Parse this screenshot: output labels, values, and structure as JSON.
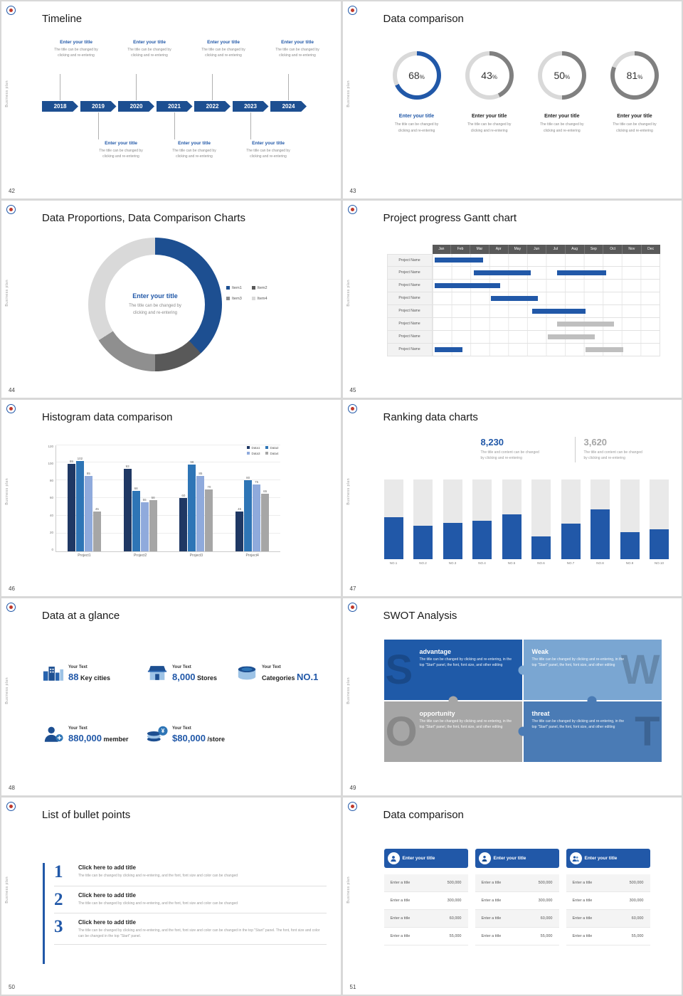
{
  "common": {
    "vertical_text": "Business plan"
  },
  "colors": {
    "accent": "#2158a8",
    "accent_dark": "#1d4f91",
    "ring_gray": "#808080",
    "track": "#d9d9d9",
    "bar_gray": "#bfbfbf"
  },
  "slides": {
    "timeline": {
      "page": "42",
      "title": "Timeline",
      "years": [
        "2018",
        "2019",
        "2020",
        "2021",
        "2022",
        "2023",
        "2024"
      ],
      "entries_top": [
        {
          "title": "Enter your title",
          "line1": "The title can be changed by",
          "line2": "clicking and re-entering"
        },
        {
          "title": "Enter your title",
          "line1": "The title can be changed by",
          "line2": "clicking and re-entering"
        },
        {
          "title": "Enter your title",
          "line1": "The title can be changed by",
          "line2": "clicking and re-entering"
        },
        {
          "title": "Enter your title",
          "line1": "The title can be changed by",
          "line2": "clicking and re-entering"
        }
      ],
      "entries_bottom": [
        {
          "title": "Enter your title",
          "line1": "The title can be changed by",
          "line2": "clicking and re-entering"
        },
        {
          "title": "Enter your title",
          "line1": "The title can be changed by",
          "line2": "clicking and re-entering"
        },
        {
          "title": "Enter your title",
          "line1": "The title can be changed by",
          "line2": "clicking and re-entering"
        }
      ]
    },
    "rings": {
      "page": "43",
      "title": "Data comparison",
      "items": [
        {
          "percent": 68,
          "accent": true,
          "title": "Enter your title",
          "line1": "The title can be changed by",
          "line2": "clicking and re-entering"
        },
        {
          "percent": 43,
          "accent": false,
          "title": "Enter your title",
          "line1": "The title can be changed by",
          "line2": "clicking and re-entering"
        },
        {
          "percent": 50,
          "accent": false,
          "title": "Enter your title",
          "line1": "The title can be changed by",
          "line2": "clicking and re-entering"
        },
        {
          "percent": 81,
          "accent": false,
          "title": "Enter your title",
          "line1": "The title can be changed by",
          "line2": "clicking and re-entering"
        }
      ]
    },
    "donut": {
      "page": "44",
      "title": "Data Proportions, Data Comparison Charts",
      "center_title": "Enter your title",
      "center_line1": "The title can be changed by",
      "center_line2": "clicking and re-entering",
      "chart_data": {
        "type": "pie",
        "items": [
          {
            "label": "Item1",
            "value": 38,
            "color": "#1d4f91"
          },
          {
            "label": "Item2",
            "value": 12,
            "color": "#595959"
          },
          {
            "label": "Item3",
            "value": 16,
            "color": "#8f8f8f"
          },
          {
            "label": "Item4",
            "value": 34,
            "color": "#d9d9d9"
          }
        ]
      }
    },
    "gantt": {
      "page": "45",
      "title": "Project progress Gantt chart",
      "row_label": "Project Name",
      "row_count": 8,
      "chart_data": {
        "type": "gantt",
        "months": [
          "Jan",
          "Feb",
          "Mar",
          "Apr",
          "May",
          "Jun",
          "Jul",
          "Aug",
          "Sep",
          "Oct",
          "Nov",
          "Dec"
        ],
        "bars": [
          {
            "row": 0,
            "start": 0.15,
            "end": 2.7,
            "color": "blue"
          },
          {
            "row": 1,
            "start": 2.2,
            "end": 5.2,
            "color": "blue"
          },
          {
            "row": 1,
            "start": 6.6,
            "end": 9.2,
            "color": "blue"
          },
          {
            "row": 2,
            "start": 0.15,
            "end": 3.6,
            "color": "blue"
          },
          {
            "row": 3,
            "start": 3.1,
            "end": 5.6,
            "color": "blue"
          },
          {
            "row": 4,
            "start": 5.3,
            "end": 8.1,
            "color": "blue"
          },
          {
            "row": 5,
            "start": 6.6,
            "end": 9.6,
            "color": "gray"
          },
          {
            "row": 6,
            "start": 6.1,
            "end": 8.6,
            "color": "gray"
          },
          {
            "row": 7,
            "start": 0.15,
            "end": 1.6,
            "color": "blue"
          },
          {
            "row": 7,
            "start": 8.1,
            "end": 10.1,
            "color": "gray"
          }
        ]
      }
    },
    "histogram": {
      "page": "46",
      "title": "Histogram data comparison",
      "chart_data": {
        "type": "bar",
        "categories": [
          "Project1",
          "Project2",
          "Project3",
          "Project4"
        ],
        "series": [
          {
            "name": "Data1",
            "color": "#1f3864",
            "values": [
              99,
              93,
              60,
              45
            ]
          },
          {
            "name": "Data2",
            "color": "#2e75b6",
            "values": [
              102,
              68,
              98,
              80
            ]
          },
          {
            "name": "Data3",
            "color": "#8faadc",
            "values": [
              85,
              55,
              85,
              75
            ]
          },
          {
            "name": "Data4",
            "color": "#a6a6a6",
            "values": [
              45,
              58,
              70,
              65
            ]
          }
        ],
        "ylim": [
          0,
          120
        ],
        "yticks": [
          0,
          20,
          40,
          60,
          80,
          100,
          120
        ]
      }
    },
    "ranking": {
      "page": "47",
      "title": "Ranking data charts",
      "stats": [
        {
          "value": "8,230",
          "color": "#2158a8",
          "line1": "The title and content can be changed",
          "line2": "by clicking and re-entering"
        },
        {
          "value": "3,620",
          "color": "#a6a6a6",
          "line1": "The title and content can be changed",
          "line2": "by clicking and re-entering"
        }
      ],
      "chart_data": {
        "type": "bar",
        "categories": [
          "NO.1",
          "NO.2",
          "NO.3",
          "NO.4",
          "NO.5",
          "NO.6",
          "NO.7",
          "NO.8",
          "NO.9",
          "NO.10"
        ],
        "values": [
          52,
          42,
          45,
          48,
          56,
          28,
          44,
          62,
          34,
          37
        ],
        "ylim": [
          0,
          100
        ]
      }
    },
    "glance": {
      "page": "48",
      "title": "Data at a glance",
      "rows": [
        [
          {
            "icon": "city",
            "label": "Your Text",
            "big": "88",
            "rest": "Key cities"
          },
          {
            "icon": "store",
            "label": "Your Text",
            "big": "8,000",
            "rest": "Stores"
          },
          {
            "icon": "categories",
            "label": "Your Text",
            "pre": "Categories",
            "big": "NO.1"
          }
        ],
        [
          {
            "icon": "member",
            "label": "Your Text",
            "big": "880,000",
            "rest": "member"
          },
          {
            "icon": "coins",
            "label": "Your Text",
            "big": "$80,000",
            "rest": "/store"
          }
        ]
      ]
    },
    "swot": {
      "page": "49",
      "title": "SWOT Analysis",
      "quadrants": [
        {
          "letter": "S",
          "word": "advantage",
          "color": "#1f5aa8",
          "body": "The title can be changed by clicking and re-entering, in the top \"Start\" panel, the font, font size, and other editing"
        },
        {
          "letter": "W",
          "word": "Weak",
          "color": "#7aa6d2",
          "body": "The title can be changed by clicking and re-entering, in the top \"Start\" panel, the font, font size, and other editing"
        },
        {
          "letter": "O",
          "word": "opportunity",
          "color": "#a6a6a6",
          "body": "The title can be changed by clicking and re-entering, in the top \"Start\" panel, the font, font size, and other editing"
        },
        {
          "letter": "T",
          "word": "threat",
          "color": "#4a7bb5",
          "body": "The title can be changed by clicking and re-entering, in the top \"Start\" panel, the font, font size, and other editing"
        }
      ]
    },
    "bullets": {
      "page": "50",
      "title": "List of bullet points",
      "items": [
        {
          "num": "1",
          "title": "Click here to add title",
          "body": "The title can be changed by clicking and re-entering, and the font, font size and color can be changed"
        },
        {
          "num": "2",
          "title": "Click here to add title",
          "body": "The title can be changed by clicking and re-entering, and the font, font size and color can be changed"
        },
        {
          "num": "3",
          "title": "Click here to add title",
          "body": "The title can be changed by clicking and re-entering, and the font, font size and color can be changed in the top \"Start\" panel. The font, font size and color can be changed in the top \"Start\" panel."
        }
      ]
    },
    "cards": {
      "page": "51",
      "title": "Data comparison",
      "items": [
        {
          "icon": "person",
          "title": "Enter your title",
          "rows": [
            {
              "label": "Enter a title",
              "value": "500,000"
            },
            {
              "label": "Enter a title",
              "value": "300,000"
            },
            {
              "label": "Enter a title",
              "value": "60,000"
            },
            {
              "label": "Enter a title",
              "value": "55,000"
            }
          ]
        },
        {
          "icon": "user",
          "title": "Enter your title",
          "rows": [
            {
              "label": "Enter a title",
              "value": "500,000"
            },
            {
              "label": "Enter a title",
              "value": "300,000"
            },
            {
              "label": "Enter a title",
              "value": "60,000"
            },
            {
              "label": "Enter a title",
              "value": "55,000"
            }
          ]
        },
        {
          "icon": "people",
          "title": "Enter your title",
          "rows": [
            {
              "label": "Enter a title",
              "value": "500,000"
            },
            {
              "label": "Enter a title",
              "value": "300,000"
            },
            {
              "label": "Enter a title",
              "value": "60,000"
            },
            {
              "label": "Enter a title",
              "value": "55,000"
            }
          ]
        }
      ]
    }
  }
}
